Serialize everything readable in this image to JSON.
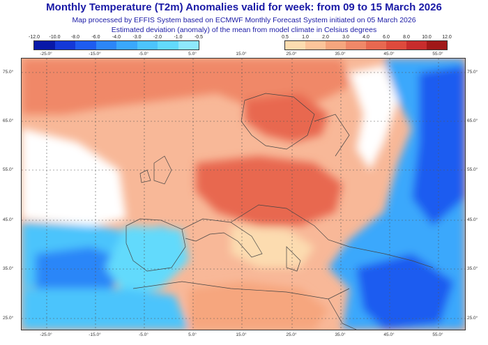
{
  "header": {
    "title": "Monthly Temperature (T2m) Anomalies valid for week: from 09 to 15 March 2026",
    "subtitle1": "Map processed by EFFIS System based on ECMWF Monthly Forecast System initiated on 05 March 2026",
    "subtitle2": "Estimated deviation (anomaly) of the mean from model climate in Celsius degrees"
  },
  "legend_cold": {
    "labels": [
      "-12.0",
      "-10.0",
      "-8.0",
      "-6.0",
      "-4.0",
      "-3.0",
      "-2.0",
      "-1.0",
      "-0.5"
    ],
    "colors": [
      "#0818a8",
      "#1438d8",
      "#1e5cf0",
      "#2c86f8",
      "#3aa8fc",
      "#4cc4fc",
      "#62dafc",
      "#8ee8fc"
    ]
  },
  "legend_warm": {
    "labels": [
      "0.5",
      "1.0",
      "2.0",
      "3.0",
      "4.0",
      "6.0",
      "8.0",
      "10.0",
      "12.0"
    ],
    "colors": [
      "#fcdcb0",
      "#fcc49a",
      "#f6a67e",
      "#f08868",
      "#e86850",
      "#de4a3c",
      "#c82c2c",
      "#a01818"
    ]
  },
  "longitude_labels": [
    "-25.0°",
    "-15.0°",
    "-5.0°",
    "5.0°",
    "15.0°",
    "25.0°",
    "35.0°",
    "45.0°",
    "55.0°"
  ],
  "latitude_labels": [
    "75.0°",
    "65.0°",
    "55.0°",
    "45.0°",
    "35.0°",
    "25.0°"
  ],
  "colors": {
    "title": "#1a1aa6",
    "warm_base": "#f6a67e",
    "cold_base": "#3aa8fc"
  }
}
